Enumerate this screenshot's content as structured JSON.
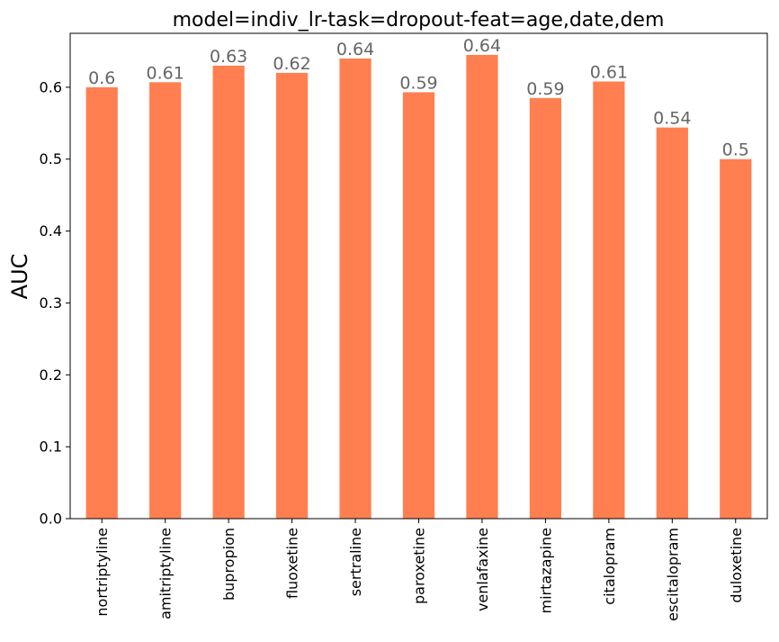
{
  "chart_data": {
    "type": "bar",
    "title": "model=indiv_lr-task=dropout-feat=age,date,dem",
    "xlabel": "",
    "ylabel": "AUC",
    "categories": [
      "nortriptyline",
      "amitriptyline",
      "bupropion",
      "fluoxetine",
      "sertraline",
      "paroxetine",
      "venlafaxine",
      "mirtazapine",
      "citalopram",
      "escitalopram",
      "duloxetine"
    ],
    "values": [
      0.6,
      0.607,
      0.63,
      0.62,
      0.64,
      0.593,
      0.645,
      0.585,
      0.608,
      0.544,
      0.5
    ],
    "data_labels": [
      "0.6",
      "0.61",
      "0.63",
      "0.62",
      "0.64",
      "0.59",
      "0.64",
      "0.59",
      "0.61",
      "0.54",
      "0.5"
    ],
    "ylim": [
      0,
      0.675
    ],
    "yticks": [
      "0.0",
      "0.1",
      "0.2",
      "0.3",
      "0.4",
      "0.5",
      "0.6"
    ],
    "grid": false,
    "colors": {
      "bar": "#ff7f50",
      "data_label": "#666666",
      "axis": "#000000"
    }
  }
}
